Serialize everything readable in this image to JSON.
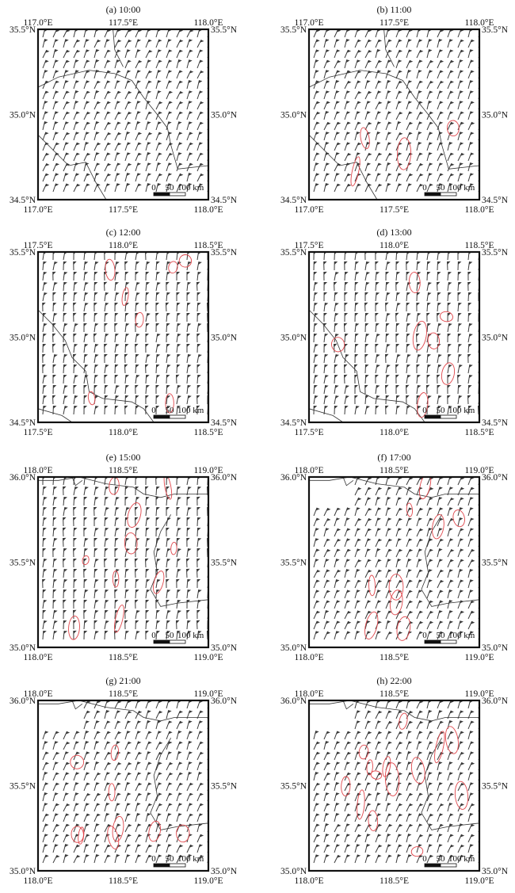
{
  "figure": {
    "panels": [
      {
        "id": "a",
        "title": "(a) 10:00",
        "x_labels": [
          "117.0°E",
          "117.5°E",
          "118.0°E"
        ],
        "y_labels": [
          "35.5°N",
          "35.0°N",
          "34.5°N"
        ],
        "lon_range": [
          117.0,
          118.0
        ],
        "lat_range": [
          34.5,
          35.5
        ],
        "blank_corner": false,
        "wind_dir": "southwesterly",
        "contour_density": 0
      },
      {
        "id": "b",
        "title": "(b) 11:00",
        "x_labels": [
          "117.0°E",
          "117.5°E",
          "118.0°E"
        ],
        "y_labels": [
          "35.5°N",
          "35.0°N",
          "34.5°N"
        ],
        "lon_range": [
          117.0,
          118.0
        ],
        "lat_range": [
          34.5,
          35.5
        ],
        "blank_corner": false,
        "wind_dir": "southwesterly",
        "contour_density": 1
      },
      {
        "id": "c",
        "title": "(c) 12:00",
        "x_labels": [
          "117.5°E",
          "118.0°E",
          "118.5°E"
        ],
        "y_labels": [
          "35.5°N",
          "35.0°N",
          "34.5°N"
        ],
        "lon_range": [
          117.5,
          118.5
        ],
        "lat_range": [
          34.5,
          35.5
        ],
        "blank_corner": false,
        "wind_dir": "southerly",
        "contour_density": 2
      },
      {
        "id": "d",
        "title": "(d) 13:00",
        "x_labels": [
          "117.5°E",
          "118.0°E",
          "118.5°E"
        ],
        "y_labels": [
          "35.5°N",
          "35.0°N",
          "34.5°N"
        ],
        "lon_range": [
          117.5,
          118.5
        ],
        "lat_range": [
          34.5,
          35.5
        ],
        "blank_corner": false,
        "wind_dir": "southerly",
        "contour_density": 2
      },
      {
        "id": "e",
        "title": "(e) 15:00",
        "x_labels": [
          "118.0°E",
          "118.5°E",
          "119.0°E"
        ],
        "y_labels": [
          "36.0°N",
          "35.5°N",
          "35.0°N"
        ],
        "lon_range": [
          118.0,
          119.0
        ],
        "lat_range": [
          35.0,
          36.0
        ],
        "blank_corner": false,
        "wind_dir": "southerly",
        "contour_density": 3
      },
      {
        "id": "f",
        "title": "(f) 17:00",
        "x_labels": [
          "118.0°E",
          "118.5°E",
          "119.0°E"
        ],
        "y_labels": [
          "36.0°N",
          "35.5°N",
          "35.0°N"
        ],
        "lon_range": [
          118.0,
          119.0
        ],
        "lat_range": [
          35.0,
          36.0
        ],
        "blank_corner": true,
        "wind_dir": "southwesterly",
        "contour_density": 3
      },
      {
        "id": "g",
        "title": "(g) 21:00",
        "x_labels": [
          "118.0°E",
          "118.5°E",
          "119.0°E"
        ],
        "y_labels": [
          "36.0°N",
          "35.5°N",
          "35.0°N"
        ],
        "lon_range": [
          118.0,
          119.0
        ],
        "lat_range": [
          35.0,
          36.0
        ],
        "blank_corner": true,
        "wind_dir": "southwesterly",
        "contour_density": 3
      },
      {
        "id": "h",
        "title": "(h) 22:00",
        "x_labels": [
          "118.0°E",
          "118.5°E",
          "119.0°E"
        ],
        "y_labels": [
          "36.0°N",
          "35.5°N",
          "35.0°N"
        ],
        "lon_range": [
          118.0,
          119.0
        ],
        "lat_range": [
          35.0,
          36.0
        ],
        "blank_corner": true,
        "wind_dir": "southwesterly",
        "contour_density": 4
      }
    ],
    "scale_bar": {
      "labels": [
        "0",
        "50",
        "100 km"
      ]
    },
    "colors": {
      "frame": "#111111",
      "barb": "#3a3a3a",
      "boundary": "#333333",
      "contour": "#e0474c"
    }
  }
}
